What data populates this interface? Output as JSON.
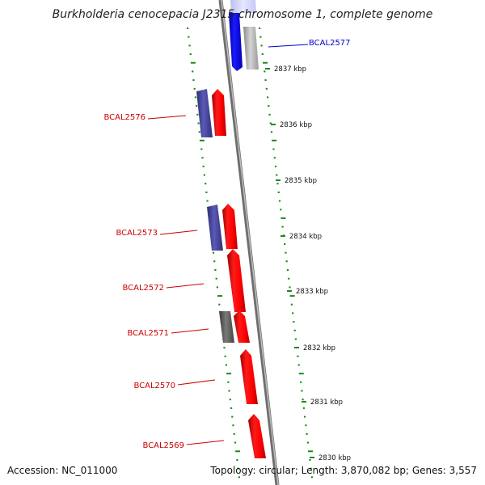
{
  "title": "Burkholderia cenocepacia J2315 chromosome 1, complete genome",
  "footer": {
    "accession": "Accession: NC_011000",
    "summary": "Topology: circular; Length: 3,870,082 bp; Genes: 3,557"
  },
  "colors": {
    "forward_gene": "#ff0000",
    "reverse_gene": "#4b4bb0",
    "highlight_gene": "#0000ff",
    "grey_gene": "#888888",
    "gc_dots": "#1a8a1a",
    "label_text": "#cc0000",
    "highlight_label": "#0000cc",
    "backbone": "#8c8c8c"
  },
  "scale_ticks": [
    {
      "label": "2837 kbp"
    },
    {
      "label": "2836 kbp"
    },
    {
      "label": "2835 kbp"
    },
    {
      "label": "2834 kbp"
    },
    {
      "label": "2833 kbp"
    },
    {
      "label": "2832 kbp"
    },
    {
      "label": "2831 kbp"
    },
    {
      "label": "2830 kbp"
    }
  ],
  "gene_labels": [
    {
      "label": "BCAL2577",
      "highlight": true
    },
    {
      "label": "BCAL2576",
      "highlight": false
    },
    {
      "label": "BCAL2573",
      "highlight": false
    },
    {
      "label": "BCAL2572",
      "highlight": false
    },
    {
      "label": "BCAL2571",
      "highlight": false
    },
    {
      "label": "BCAL2570",
      "highlight": false
    },
    {
      "label": "BCAL2569",
      "highlight": false
    }
  ],
  "genes": [
    {
      "kind": "highlight",
      "strand": "forward"
    },
    {
      "kind": "grey",
      "strand": "forward"
    },
    {
      "kind": "reverse",
      "strand": "reverse"
    },
    {
      "kind": "forward",
      "strand": "forward"
    },
    {
      "kind": "reverse",
      "strand": "reverse"
    },
    {
      "kind": "forward",
      "strand": "forward"
    },
    {
      "kind": "forward",
      "strand": "forward"
    },
    {
      "kind": "grey",
      "strand": "reverse"
    },
    {
      "kind": "forward",
      "strand": "forward"
    },
    {
      "kind": "forward",
      "strand": "forward"
    },
    {
      "kind": "forward",
      "strand": "forward"
    }
  ]
}
